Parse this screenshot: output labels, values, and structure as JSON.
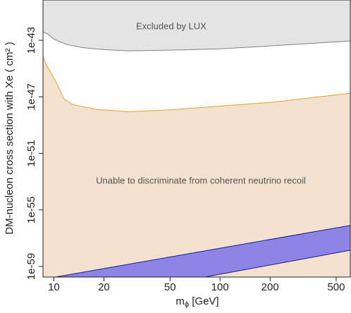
{
  "chart_data": {
    "type": "line",
    "annotations": [
      "Excluded by LUX",
      "Unable to discriminate from coherent neutrino recoil"
    ],
    "xlabel": {
      "base": "m",
      "sub": "ϕ",
      "rest": " [GeV]"
    },
    "ylabel": "DM-nucleon cross section with Xe ( cm² )",
    "xlog": true,
    "ylog": true,
    "xlim": [
      8.6,
      608
    ],
    "ylim": [
      1.78e-60,
      7.08e-41
    ],
    "xticks": [
      10,
      20,
      50,
      100,
      200,
      500
    ],
    "yticks": [
      {
        "value": 1e-43,
        "label": "1e-43"
      },
      {
        "value": 1e-47,
        "label": "1e-47"
      },
      {
        "value": 1e-51,
        "label": "1e-51"
      },
      {
        "value": 1e-55,
        "label": "1e-55"
      },
      {
        "value": 1e-59,
        "label": "1e-59"
      }
    ],
    "series": [
      {
        "color": "#808080",
        "fill": "above",
        "fill_color": "#e4e4e4",
        "x": [
          8.6,
          9.3,
          10,
          12,
          15,
          20,
          28,
          50,
          100,
          200,
          608
        ],
        "values": [
          4e-43,
          2.5e-43,
          1.2e-43,
          5e-44,
          3e-44,
          2.2e-44,
          1.8e-44,
          2e-44,
          2.5e-44,
          4e-44,
          9e-44
        ]
      },
      {
        "color": "#e6a030",
        "fill": "below",
        "fill_color": "#f3e2d0",
        "x": [
          8.6,
          9.0,
          9.7,
          10.4,
          11.5,
          13,
          18,
          28,
          50,
          100,
          200,
          608
        ],
        "values": [
          7e-45,
          1.8e-45,
          4e-46,
          9e-47,
          7e-48,
          2.8e-48,
          1.3e-48,
          9e-49,
          1.2e-48,
          2.2e-48,
          4e-48,
          1.8e-47
        ]
      },
      {
        "color": "#1a1a8c",
        "fill": "below",
        "fill_color": "#8d84e6",
        "x": [
          10.2,
          608
        ],
        "values": [
          1.78e-60,
          8e-57
        ]
      },
      {
        "color": "#1a1a8c",
        "fill": "below",
        "fill_color": "#f3e2d0",
        "x": [
          81,
          608
        ],
        "values": [
          1.78e-60,
          1.4e-58
        ]
      }
    ]
  }
}
